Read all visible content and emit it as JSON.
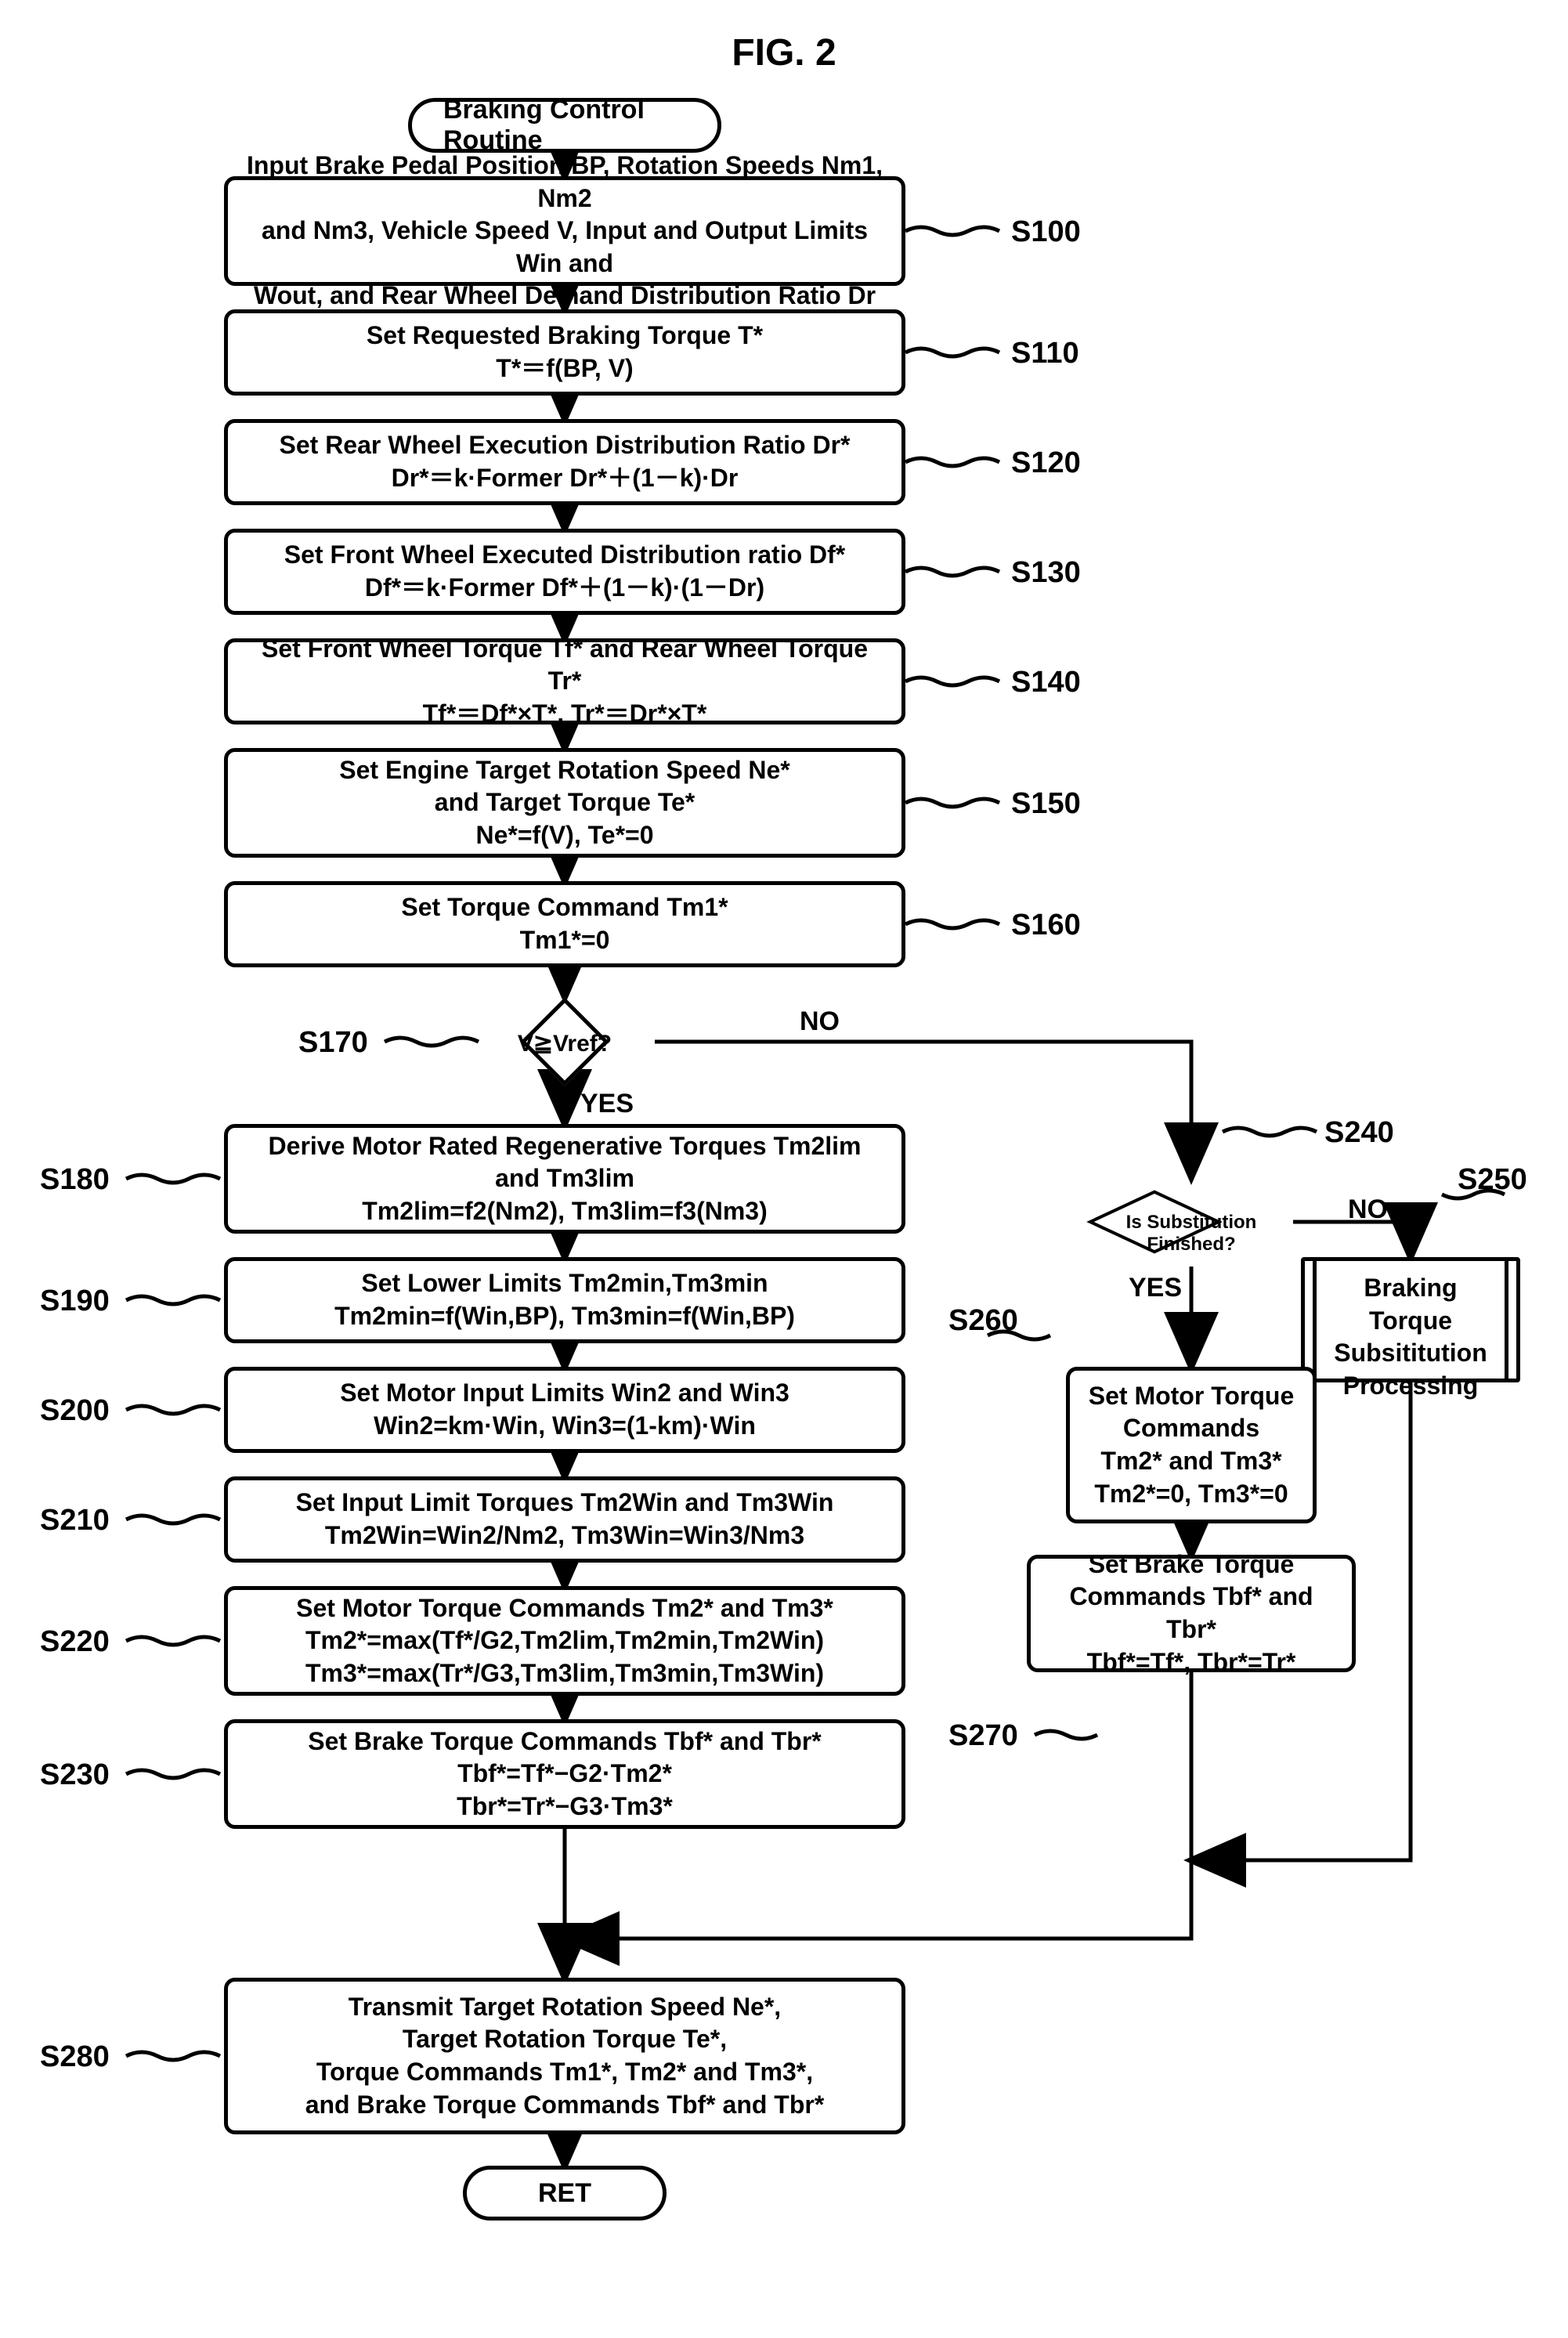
{
  "figure_title": "FIG. 2",
  "type": "flowchart",
  "stroke_color": "#000000",
  "background_color": "#ffffff",
  "stroke_width": 5,
  "font_family": "Arial",
  "font_weight": "bold",
  "start": {
    "label": "Braking Control Routine"
  },
  "end": {
    "label": "RET"
  },
  "steps": {
    "s100": {
      "id": "S100",
      "lines": [
        "Input Brake Pedal Position BP, Rotation Speeds Nm1, Nm2",
        "and Nm3, Vehicle Speed V, Input and Output Limits Win and",
        "Wout, and Rear Wheel Demand Distribution Ratio Dr"
      ]
    },
    "s110": {
      "id": "S110",
      "lines": [
        "Set Requested Braking Torque T*",
        "T*＝f(BP, V)"
      ]
    },
    "s120": {
      "id": "S120",
      "lines": [
        "Set Rear Wheel Execution Distribution Ratio Dr*",
        "Dr*＝k·Former Dr*＋(1－k)·Dr"
      ]
    },
    "s130": {
      "id": "S130",
      "lines": [
        "Set Front Wheel Executed Distribution ratio Df*",
        "Df*＝k·Former Df*＋(1－k)·(1－Dr)"
      ]
    },
    "s140": {
      "id": "S140",
      "lines": [
        "Set Front Wheel Torque Tf* and Rear Wheel Torque Tr*",
        "Tf*＝Df*×T*,  Tr*＝Dr*×T*"
      ]
    },
    "s150": {
      "id": "S150",
      "lines": [
        "Set Engine Target Rotation Speed Ne*",
        "and Target Torque Te*",
        "Ne*=f(V),  Te*=0"
      ]
    },
    "s160": {
      "id": "S160",
      "lines": [
        "Set Torque Command Tm1*",
        "Tm1*=0"
      ]
    },
    "s170": {
      "id": "S170",
      "cond": "V≧Vref?",
      "yes": "YES",
      "no": "NO"
    },
    "s180": {
      "id": "S180",
      "lines": [
        "Derive Motor Rated Regenerative Torques Tm2lim",
        "and Tm3lim",
        "Tm2lim=f2(Nm2),  Tm3lim=f3(Nm3)"
      ]
    },
    "s190": {
      "id": "S190",
      "lines": [
        "Set Lower Limits Tm2min,Tm3min",
        "Tm2min=f(Win,BP),  Tm3min=f(Win,BP)"
      ]
    },
    "s200": {
      "id": "S200",
      "lines": [
        "Set Motor Input Limits Win2 and Win3",
        "Win2=km·Win,  Win3=(1-km)·Win"
      ]
    },
    "s210": {
      "id": "S210",
      "lines": [
        "Set Input Limit Torques Tm2Win and Tm3Win",
        "Tm2Win=Win2/Nm2,  Tm3Win=Win3/Nm3"
      ]
    },
    "s220": {
      "id": "S220",
      "lines": [
        "Set Motor Torque Commands Tm2* and Tm3*",
        "Tm2*=max(Tf*/G2,Tm2lim,Tm2min,Tm2Win)",
        "Tm3*=max(Tr*/G3,Tm3lim,Tm3min,Tm3Win)"
      ]
    },
    "s230": {
      "id": "S230",
      "lines": [
        "Set Brake Torque Commands Tbf* and Tbr*",
        "Tbf*=Tf*−G2·Tm2*",
        "Tbr*=Tr*−G3·Tm3*"
      ]
    },
    "s240": {
      "id": "S240",
      "cond": "Is Substitution Finished?",
      "yes": "YES",
      "no": "NO"
    },
    "s250": {
      "id": "S250",
      "lines": [
        "Braking Torque",
        "Subsititution",
        "Processing"
      ]
    },
    "s260": {
      "id": "S260",
      "lines": [
        "Set Motor Torque",
        "Commands",
        "Tm2* and Tm3*",
        "Tm2*=0, Tm3*=0"
      ]
    },
    "s270": {
      "id": "S270",
      "lines": [
        "Set Brake Torque",
        "Commands Tbf* and Tbr*",
        "Tbf*=Tf*, Tbr*=Tr*"
      ]
    },
    "s280": {
      "id": "S280",
      "lines": [
        "Transmit Target Rotation Speed Ne*,",
        "Target Rotation Torque Te*,",
        "Torque Commands Tm1*, Tm2* and Tm3*,",
        "and Brake Torque Commands Tbf* and Tbr*"
      ]
    }
  }
}
